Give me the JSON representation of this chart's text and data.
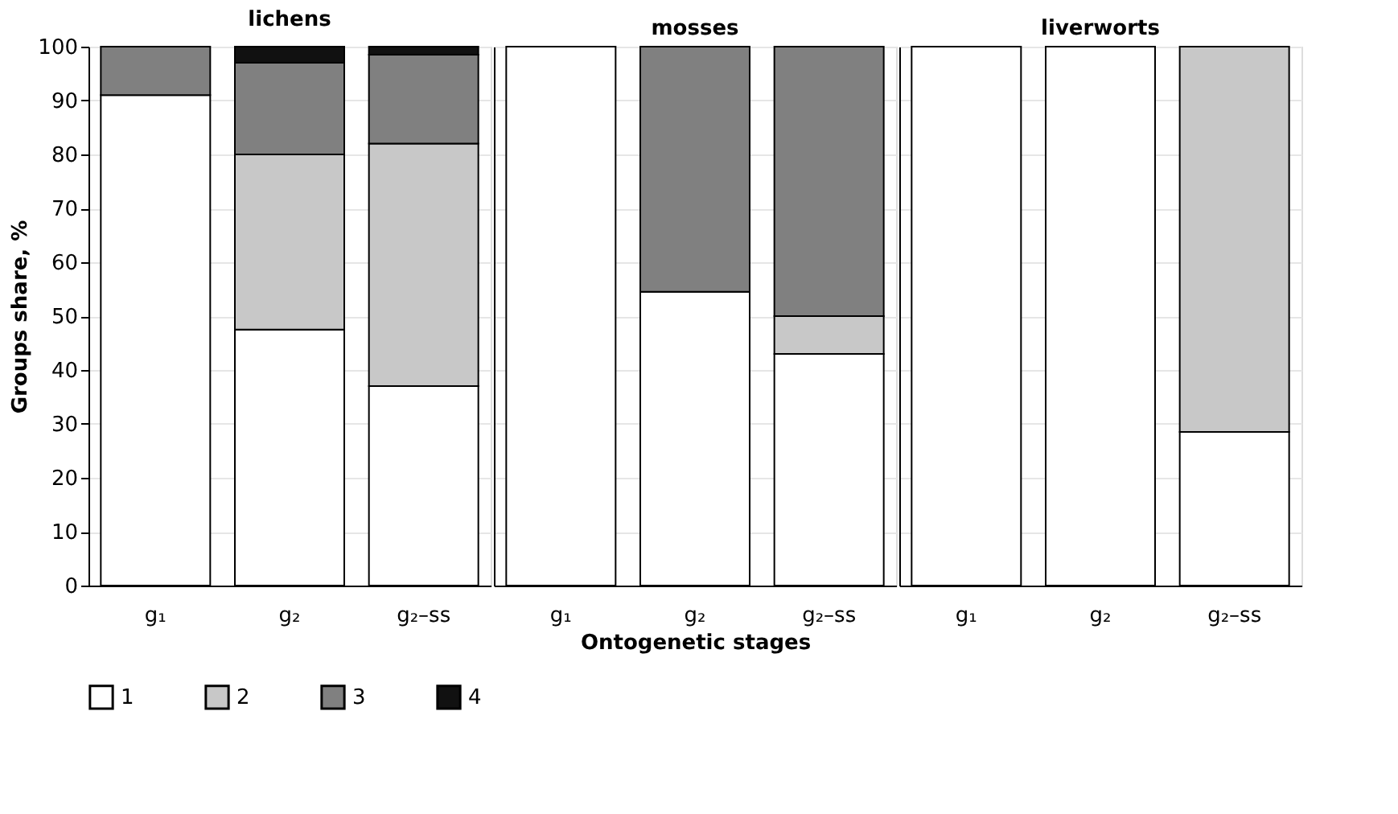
{
  "chart_data": [
    {
      "type": "bar",
      "stacked": true,
      "title": "lichens",
      "ylabel": "Groups share, %",
      "legend": "bottom",
      "categories": [
        "g₁",
        "g₂",
        "g₂–ss"
      ],
      "series": [
        {
          "name": "1",
          "color": "#ffffff",
          "values": [
            91,
            47.5,
            37
          ]
        },
        {
          "name": "2",
          "color": "#c8c8c8",
          "values": [
            null,
            32.5,
            45
          ]
        },
        {
          "name": "3",
          "color": "#808080",
          "values": [
            9,
            17,
            16.5
          ]
        },
        {
          "name": "4",
          "color": "#111111",
          "values": [
            null,
            3,
            1.5
          ]
        }
      ],
      "ylim": [
        0,
        100
      ],
      "yticks": [
        0,
        10,
        20,
        30,
        40,
        50,
        60,
        70,
        80,
        90,
        100
      ],
      "grid": "y"
    },
    {
      "type": "bar",
      "stacked": true,
      "title": "mosses",
      "xlabel": "Ontogenetic stages",
      "categories": [
        "g₁",
        "g₂",
        "g₂–ss"
      ],
      "series": [
        {
          "color": "#ffffff",
          "values": [
            100,
            54.5,
            43
          ]
        },
        {
          "color": "#c8c8c8",
          "values": [
            null,
            null,
            7
          ]
        },
        {
          "color": "#808080",
          "values": [
            null,
            45.5,
            50
          ]
        },
        {
          "color": "#111111",
          "values": [
            null,
            null,
            null
          ]
        }
      ],
      "ylim": [
        0,
        100
      ],
      "yticks": [
        0,
        10,
        20,
        30,
        40,
        50,
        60,
        70,
        80,
        90,
        100
      ],
      "tick_labels": "x",
      "grid": "y"
    },
    {
      "type": "bar",
      "stacked": true,
      "title": "liverworts",
      "categories": [
        "g₁",
        "g₂",
        "g₂–ss"
      ],
      "series": [
        {
          "color": "#ffffff",
          "values": [
            100,
            100,
            28.5
          ]
        },
        {
          "color": "#c8c8c8",
          "values": [
            null,
            null,
            71.5
          ]
        },
        {
          "color": "#808080",
          "values": [
            null,
            null,
            null
          ]
        },
        {
          "color": "#111111",
          "values": [
            null,
            null,
            null
          ]
        }
      ],
      "ylim": [
        0,
        100
      ],
      "yticks": [
        0,
        10,
        20,
        30,
        40,
        50,
        60,
        70,
        80,
        90,
        100
      ],
      "tick_labels": "x",
      "grid": "y"
    }
  ]
}
